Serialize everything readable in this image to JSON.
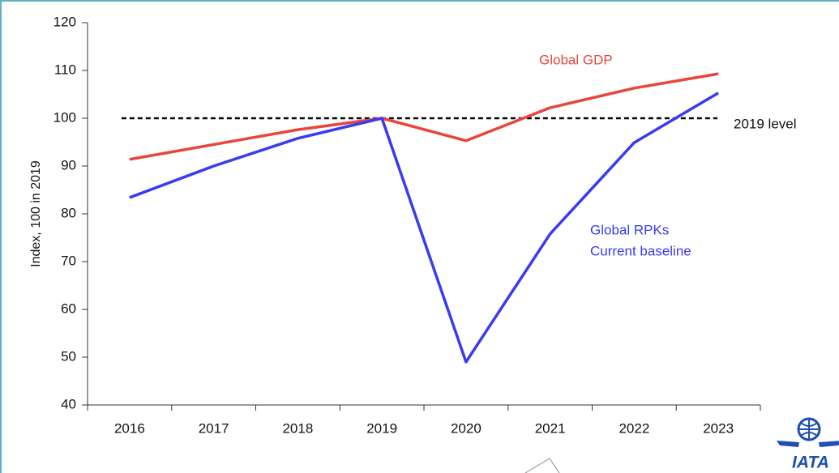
{
  "chart_data": {
    "type": "line",
    "ylabel": "Index, 100 in 2019",
    "categories": [
      "2016",
      "2017",
      "2018",
      "2019",
      "2020",
      "2021",
      "2022",
      "2023"
    ],
    "series": [
      {
        "name": "Global GDP",
        "color": "#e8453c",
        "values": [
          91.4,
          94.5,
          97.6,
          100,
          95.3,
          102.2,
          106.3,
          109.3
        ]
      },
      {
        "name": "Global RPKs",
        "note": "Current baseline",
        "color": "#3a3af0",
        "values": [
          83.4,
          90,
          95.8,
          100,
          49,
          75.8,
          94.9,
          105.3
        ]
      }
    ],
    "reference_lines": [
      {
        "value": 100,
        "label": "2019 level",
        "color": "#000000"
      }
    ],
    "ylim": [
      40,
      120
    ],
    "yticks": [
      40,
      50,
      60,
      70,
      80,
      90,
      100,
      110,
      120
    ],
    "logo": "IATA"
  }
}
